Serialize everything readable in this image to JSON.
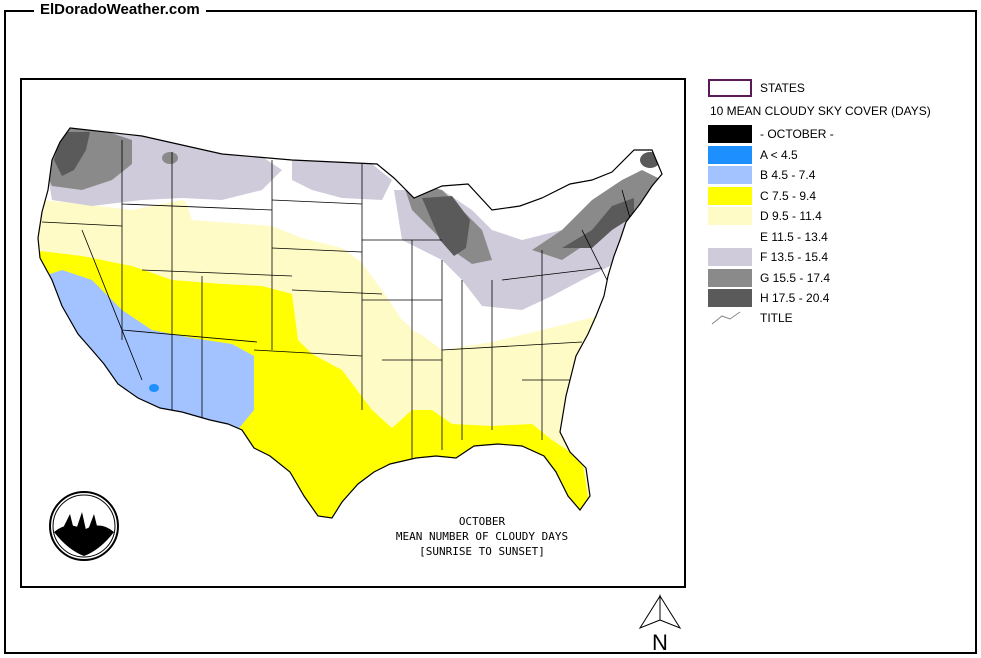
{
  "site_title": "ElDoradoWeather.com",
  "legend": {
    "states_label": "STATES",
    "layer_title": "10 MEAN CLOUDY SKY COVER (DAYS)",
    "title_item_label": "TITLE",
    "classes": [
      {
        "label": "- OCTOBER -",
        "color": "#000000"
      },
      {
        "label": "A < 4.5",
        "color": "#1e8fff"
      },
      {
        "label": "B 4.5 - 7.4",
        "color": "#a2c3ff"
      },
      {
        "label": "C 7.5 - 9.4",
        "color": "#ffff00"
      },
      {
        "label": "D 9.5 - 11.4",
        "color": "#fffbc6"
      },
      {
        "label": "E 11.5 - 13.4",
        "color": "#ffffff"
      },
      {
        "label": "F 13.5 - 15.4",
        "color": "#d0cbdb"
      },
      {
        "label": "G 15.5 - 17.4",
        "color": "#8a8a8a"
      },
      {
        "label": "H 17.5 - 20.4",
        "color": "#5a5a5a"
      }
    ]
  },
  "map_caption": {
    "line1": "OCTOBER",
    "line2": "MEAN NUMBER OF CLOUDY DAYS",
    "line3": "[SUNRISE TO SUNSET]"
  },
  "north_arrow_label": "N",
  "colors": {
    "states_outline": "#5a1a5a",
    "border": "#000000"
  }
}
